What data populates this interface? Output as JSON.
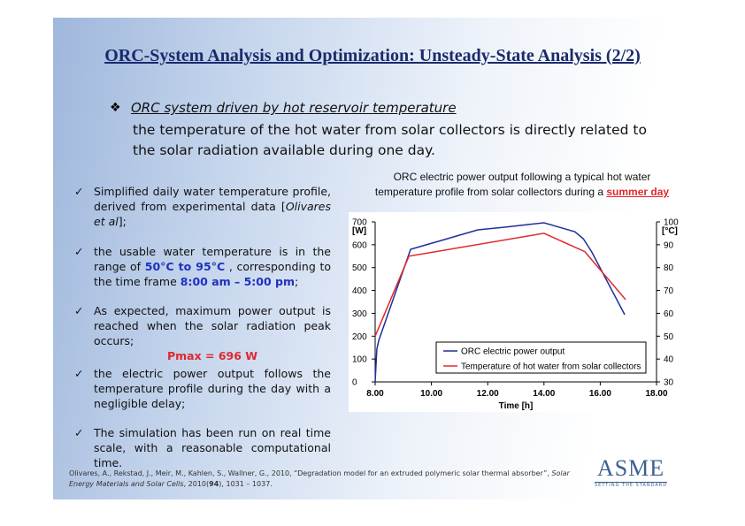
{
  "title": [
    "ORC-System Analysis and Optimization: Unsteady-State Analysis",
    " (2/2)"
  ],
  "intro": {
    "heading": "ORC system driven by hot reservoir temperature",
    "text": "the temperature of the hot water from solar collectors is directly related to the solar radiation available during one day."
  },
  "bullets": [
    [
      "Simplified daily water temperature profile, derived from experimental data [",
      "Olivares et al",
      "];"
    ],
    [
      "the usable water temperature is in the  range of ",
      "50°C to 95°C",
      " , corresponding to the time frame ",
      "8:00 am – 5:00 pm",
      ";"
    ],
    [
      "As expected, maximum power output is reached when the solar radiation peak occurs;",
      "Pmax  = 696 W"
    ],
    [
      "the electric power output follows the temperature profile during the day with a negligible delay;"
    ],
    [
      "The simulation has been run on real time scale, with a reasonable computational time."
    ]
  ],
  "reference": [
    "Olivares, A., Rekstad, J., Meir, M., Kahlen, S., Wallner, G., 2010, “Degradation model for an extruded polymeric solar thermal absorber”, ",
    "Solar Energy Materials and Solar Cells",
    ", 2010(",
    "94",
    "), 1031 – 1037."
  ],
  "logo": {
    "name": "ASME",
    "tagline": "SETTING THE STANDARD"
  },
  "chart_data": {
    "type": "line",
    "title": [
      "ORC electric power output following a typical hot water",
      "temperature profile from solar collectors during a ",
      "summer day"
    ],
    "xlabel": "Time [h]",
    "ylabel": "[W]",
    "y2label": "[°C]",
    "xlim": [
      8,
      18
    ],
    "xticks": [
      {
        "value": 8,
        "label": "8.00"
      },
      {
        "value": 10,
        "label": "10.00"
      },
      {
        "value": 12,
        "label": "12.00"
      },
      {
        "value": 14,
        "label": "14.00"
      },
      {
        "value": 16,
        "label": "16.00"
      },
      {
        "value": 18,
        "label": "18.00"
      }
    ],
    "ylim": [
      0,
      700
    ],
    "yticks": [
      0,
      100,
      200,
      300,
      400,
      500,
      600,
      700
    ],
    "y2lim": [
      30,
      100
    ],
    "y2ticks": [
      30,
      40,
      50,
      60,
      70,
      80,
      90,
      100
    ],
    "series": [
      {
        "name": "ORC electric power output",
        "color": "#1f2f9a",
        "x": [
          8.0,
          8.06,
          8.13,
          9.26,
          11.65,
          12.6,
          14.0,
          15.1,
          15.4,
          15.7,
          16.87
        ],
        "values": [
          0,
          143,
          182,
          580,
          665,
          677,
          696,
          657,
          626,
          568,
          294
        ]
      },
      {
        "name": "Temperature of hot water from solar collectors",
        "color": "#e0282e",
        "axis": "y2",
        "x": [
          8.0,
          9.2,
          14.0,
          15.45,
          16.9
        ],
        "values": [
          50,
          85,
          95,
          87,
          66
        ]
      }
    ]
  }
}
